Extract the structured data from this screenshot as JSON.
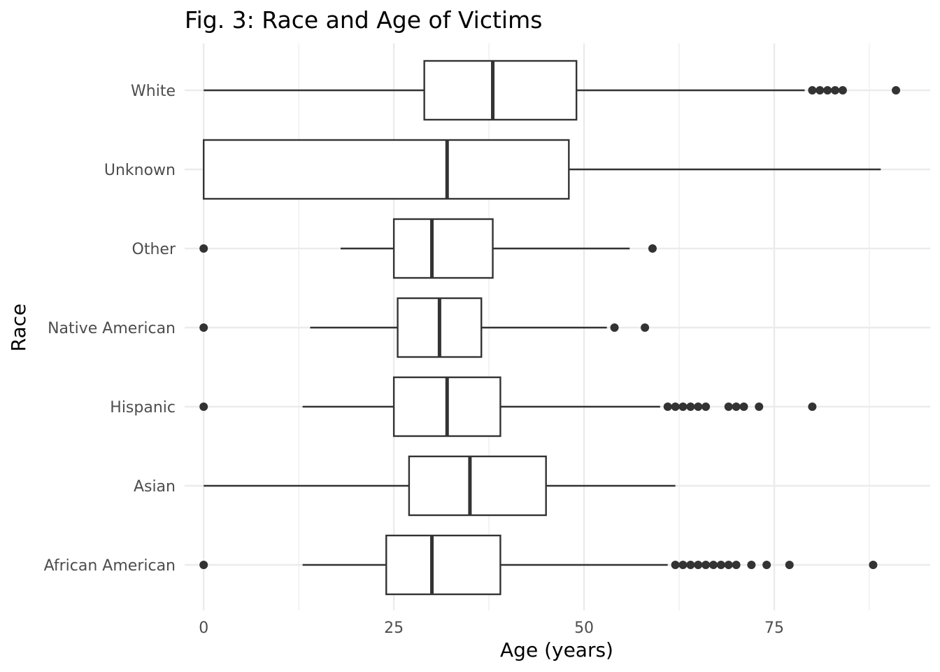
{
  "chart_data": {
    "type": "boxplot",
    "orientation": "horizontal",
    "title": "Fig. 3: Race and Age of Victims",
    "xlabel": "Age (years)",
    "ylabel": "Race",
    "xlim": [
      -2.5,
      95.5
    ],
    "x_ticks": [
      0,
      25,
      50,
      75
    ],
    "x_tick_labels": [
      "0",
      "25",
      "50",
      "75"
    ],
    "x_minor_ticks": [
      12.5,
      37.5,
      62.5,
      87.5
    ],
    "grid": true,
    "categories": [
      "White",
      "Unknown",
      "Other",
      "Native American",
      "Hispanic",
      "Asian",
      "African American"
    ],
    "boxes": [
      {
        "category": "White",
        "whisker_low": 0,
        "q1": 29,
        "median": 38,
        "q3": 49,
        "whisker_high": 79,
        "outliers": [
          80,
          81,
          82,
          83,
          84,
          91
        ]
      },
      {
        "category": "Unknown",
        "whisker_low": 0,
        "q1": 0,
        "median": 32,
        "q3": 48,
        "whisker_high": 89,
        "outliers": []
      },
      {
        "category": "Other",
        "whisker_low": 18,
        "q1": 25,
        "median": 30,
        "q3": 38,
        "whisker_high": 56,
        "outliers": [
          0,
          59
        ]
      },
      {
        "category": "Native American",
        "whisker_low": 14,
        "q1": 25.5,
        "median": 31,
        "q3": 36.5,
        "whisker_high": 53,
        "outliers": [
          0,
          54,
          58
        ]
      },
      {
        "category": "Hispanic",
        "whisker_low": 13,
        "q1": 25,
        "median": 32,
        "q3": 39,
        "whisker_high": 60,
        "outliers": [
          0,
          61,
          62,
          63,
          64,
          65,
          66,
          69,
          70,
          71,
          73,
          80
        ]
      },
      {
        "category": "Asian",
        "whisker_low": 0,
        "q1": 27,
        "median": 35,
        "q3": 45,
        "whisker_high": 62,
        "outliers": []
      },
      {
        "category": "African American",
        "whisker_low": 13,
        "q1": 24,
        "median": 30,
        "q3": 39,
        "whisker_high": 61,
        "outliers": [
          0,
          62,
          63,
          64,
          65,
          66,
          67,
          68,
          69,
          70,
          72,
          74,
          77,
          88
        ]
      }
    ],
    "colors": {
      "box_fill": "#ffffff",
      "box_line": "#333333",
      "grid": "#ebebeb",
      "outlier": "#333333"
    }
  }
}
